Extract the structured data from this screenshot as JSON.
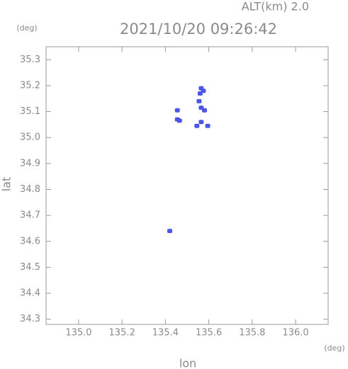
{
  "chart_data": {
    "type": "scatter",
    "title": "2021/10/20 09:26:42",
    "subtitle": "ALT(km) 2.0",
    "x_label": "lon",
    "y_label": "lat",
    "x_unit": "(deg)",
    "y_unit": "(deg)",
    "color": "#4b55e6",
    "xlim": [
      134.85,
      136.15
    ],
    "ylim": [
      34.28,
      35.35
    ],
    "xticks": [
      {
        "value": 135.0,
        "label": "135.0"
      },
      135.2,
      135.4,
      135.6,
      135.8,
      {
        "value": 136.0,
        "label": "136.0"
      }
    ],
    "yticks": [
      34.3,
      34.4,
      34.5,
      34.6,
      34.7,
      34.8,
      34.9,
      {
        "value": 35.0,
        "label": "35.0"
      },
      35.1,
      35.2,
      35.3
    ],
    "x": [
      135.565,
      135.575,
      135.56,
      135.555,
      135.565,
      135.58,
      135.455,
      135.455,
      135.465,
      135.545,
      135.565,
      135.595,
      135.42
    ],
    "y": [
      35.19,
      35.18,
      35.17,
      35.14,
      35.115,
      35.105,
      35.105,
      35.07,
      35.065,
      35.045,
      35.06,
      35.045,
      34.64
    ]
  }
}
